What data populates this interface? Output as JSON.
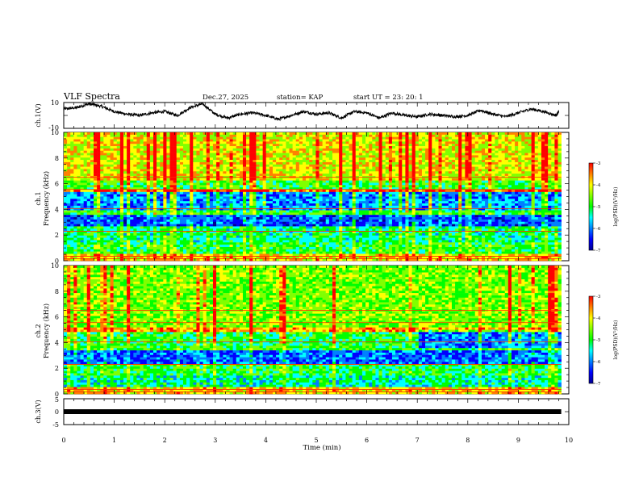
{
  "header": {
    "title": "VLF Spectra",
    "date": "Dec.27, 2025",
    "station": "station= KAP",
    "start": "start  UT =   23: 20: 1"
  },
  "colors": {
    "spectrum": [
      "#000090",
      "#0000ff",
      "#0080ff",
      "#00ffff",
      "#00ff00",
      "#80ff00",
      "#ffff00",
      "#ff8000",
      "#ff0000"
    ],
    "trace": "#000000"
  },
  "chart_data": [
    {
      "type": "line",
      "name": "ch1-waveform",
      "ylabel": "ch.1(V)",
      "ylim": [
        -10,
        10
      ],
      "ytick_labels": [
        "10",
        "-10"
      ],
      "xlim": [
        0,
        10
      ],
      "x": [
        0,
        0.25,
        0.5,
        0.75,
        1.0,
        1.25,
        1.5,
        1.75,
        2.0,
        2.25,
        2.5,
        2.75,
        3.0,
        3.25,
        3.5,
        3.75,
        4.0,
        4.25,
        4.5,
        4.75,
        5.0,
        5.25,
        5.5,
        5.75,
        6.0,
        6.25,
        6.5,
        6.75,
        7.0,
        7.25,
        7.5,
        7.75,
        8.0,
        8.25,
        8.5,
        8.75,
        9.0,
        9.25,
        9.5,
        9.75,
        9.8
      ],
      "y": [
        5,
        6,
        9,
        7,
        3,
        1,
        0,
        2,
        3,
        0,
        6,
        9,
        1,
        -2,
        1,
        2,
        0,
        -3,
        0,
        3,
        1,
        2,
        -2,
        3,
        2,
        -2,
        2,
        0,
        -1,
        1,
        0,
        -1,
        0,
        4,
        1,
        -1,
        2,
        5,
        3,
        0,
        3
      ]
    },
    {
      "type": "heatmap",
      "name": "ch1-spectrogram",
      "title": "ch.1",
      "ylabel": "Frequency (kHz)",
      "ylim": [
        0,
        10
      ],
      "ytick_labels": [
        "0",
        "2",
        "4",
        "6",
        "8",
        "10"
      ],
      "xlim": [
        0,
        9.85
      ],
      "zlim": [
        -7,
        -3
      ],
      "bands": [
        [
          0,
          0.5,
          -4.0
        ],
        [
          0.5,
          1.5,
          -5.0
        ],
        [
          1.5,
          2.6,
          -5.2
        ],
        [
          2.6,
          3.6,
          -6.1
        ],
        [
          3.6,
          4.0,
          -4.9
        ],
        [
          4.0,
          5.4,
          -5.8
        ],
        [
          5.4,
          5.6,
          -3.6
        ],
        [
          5.6,
          6.2,
          -4.9
        ],
        [
          6.2,
          10,
          -4.2
        ]
      ],
      "colorbar": {
        "label": "log(PSD)(V²/Hz)",
        "ticks": [
          "-3",
          "-4",
          "-5",
          "-6",
          "-7"
        ]
      }
    },
    {
      "type": "heatmap",
      "name": "ch2-spectrogram",
      "title": "ch.2",
      "ylabel": "Frequency (kHz)",
      "ylim": [
        0,
        10
      ],
      "ytick_labels": [
        "0",
        "2",
        "4",
        "6",
        "8",
        "10"
      ],
      "xlim": [
        0,
        9.85
      ],
      "zlim": [
        -7,
        -3
      ],
      "bands": [
        [
          0,
          0.5,
          -4.0
        ],
        [
          0.5,
          1.5,
          -5.3
        ],
        [
          1.5,
          2.4,
          -5.0
        ],
        [
          2.4,
          3.4,
          -6.0
        ],
        [
          3.4,
          3.7,
          -4.9
        ],
        [
          3.7,
          4.9,
          -5.0
        ],
        [
          4.9,
          5.2,
          -3.8
        ],
        [
          5.2,
          10,
          -4.6
        ]
      ],
      "colorbar": {
        "label": "log(PSD)(V²/Hz)",
        "ticks": [
          "-3",
          "-4",
          "-5",
          "-6",
          "-7"
        ]
      }
    },
    {
      "type": "line",
      "name": "ch3-waveform",
      "ylabel": "ch.3(V)",
      "ylim": [
        -5,
        5
      ],
      "ytick_labels": [
        "5",
        "0",
        "-5"
      ],
      "xlim": [
        0,
        10
      ],
      "x": [
        0,
        9.85
      ],
      "y": [
        0,
        0
      ],
      "xlabel": "Time (min)",
      "xtick_labels": [
        "0",
        "1",
        "2",
        "3",
        "4",
        "5",
        "6",
        "7",
        "8",
        "9",
        "10"
      ]
    }
  ]
}
